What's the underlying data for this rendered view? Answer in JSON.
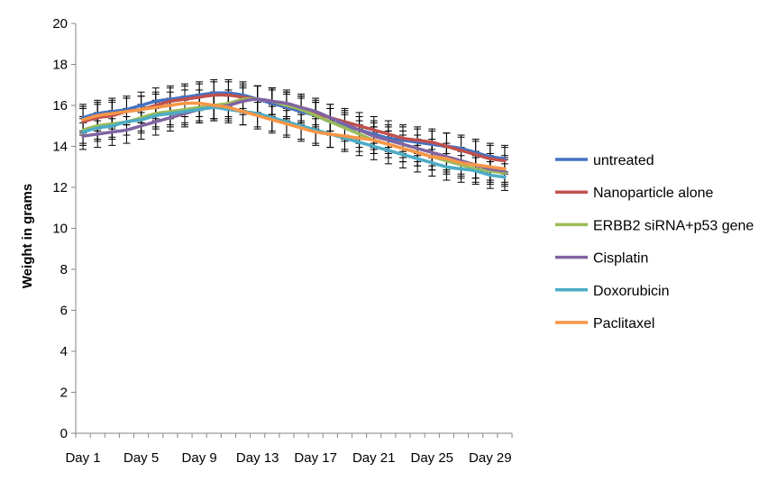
{
  "chart_data": {
    "type": "line",
    "ylabel": "Weight in grams",
    "xlabel": "",
    "ylim": [
      0,
      20
    ],
    "yticks": [
      0,
      2,
      4,
      6,
      8,
      10,
      12,
      14,
      16,
      18,
      20
    ],
    "x": [
      "Day 1",
      "Day 2",
      "Day 3",
      "Day 4",
      "Day 5",
      "Day 6",
      "Day 7",
      "Day 8",
      "Day 9",
      "Day 10",
      "Day 11",
      "Day 12",
      "Day 13",
      "Day 14",
      "Day 15",
      "Day 16",
      "Day 17",
      "Day 18",
      "Day 19",
      "Day 20",
      "Day 21",
      "Day 22",
      "Day 23",
      "Day 24",
      "Day 25",
      "Day 26",
      "Day 27",
      "Day 28",
      "Day 29",
      "Day 30"
    ],
    "xtick_labels": [
      "Day 1",
      "Day 5",
      "Day 9",
      "Day 13",
      "Day 17",
      "Day 21",
      "Day 25",
      "Day 29"
    ],
    "xtick_index": [
      0,
      4,
      8,
      12,
      16,
      20,
      24,
      28
    ],
    "legend_position": "right",
    "error_bar": 0.65,
    "series": [
      {
        "name": "untreated",
        "color": "#4472C4",
        "values": [
          15.4,
          15.6,
          15.7,
          15.8,
          16.0,
          16.2,
          16.3,
          16.4,
          16.5,
          16.6,
          16.6,
          16.5,
          16.3,
          16.1,
          15.9,
          15.7,
          15.5,
          15.2,
          15.0,
          14.8,
          14.6,
          14.4,
          14.3,
          14.2,
          14.1,
          14.0,
          13.9,
          13.7,
          13.5,
          13.4
        ]
      },
      {
        "name": "Nanoparticle alone",
        "color": "#C0504D",
        "values": [
          15.2,
          15.4,
          15.5,
          15.7,
          15.8,
          16.0,
          16.2,
          16.3,
          16.4,
          16.5,
          16.5,
          16.4,
          16.3,
          16.2,
          16.0,
          15.8,
          15.6,
          15.4,
          15.2,
          15.0,
          14.8,
          14.6,
          14.4,
          14.3,
          14.2,
          14.0,
          13.8,
          13.6,
          13.4,
          13.3
        ]
      },
      {
        "name": "ERBB2 siRNA+p53 gene",
        "color": "#9BBB59",
        "values": [
          14.8,
          15.0,
          15.1,
          15.2,
          15.4,
          15.6,
          15.7,
          15.8,
          15.9,
          16.0,
          16.1,
          16.3,
          16.3,
          16.2,
          16.0,
          15.8,
          15.5,
          15.2,
          14.9,
          14.6,
          14.3,
          14.1,
          13.9,
          13.7,
          13.5,
          13.3,
          13.1,
          12.9,
          12.8,
          12.7
        ]
      },
      {
        "name": "Cisplatin",
        "color": "#8064A2",
        "values": [
          14.5,
          14.6,
          14.7,
          14.8,
          15.0,
          15.2,
          15.4,
          15.6,
          15.8,
          15.9,
          16.0,
          16.2,
          16.3,
          16.2,
          16.1,
          15.9,
          15.7,
          15.4,
          15.1,
          14.8,
          14.5,
          14.3,
          14.1,
          13.9,
          13.7,
          13.5,
          13.3,
          13.1,
          12.9,
          12.8
        ]
      },
      {
        "name": "Doxorubicin",
        "color": "#4BACC6",
        "values": [
          14.7,
          14.9,
          15.0,
          15.2,
          15.3,
          15.5,
          15.6,
          15.7,
          15.8,
          15.9,
          15.8,
          15.7,
          15.6,
          15.4,
          15.2,
          15.0,
          14.8,
          14.6,
          14.4,
          14.2,
          14.0,
          13.8,
          13.6,
          13.4,
          13.2,
          13.0,
          12.9,
          12.8,
          12.6,
          12.5
        ]
      },
      {
        "name": "Paclitaxel",
        "color": "#F79646",
        "values": [
          15.3,
          15.5,
          15.6,
          15.7,
          15.8,
          15.9,
          16.0,
          16.1,
          16.1,
          16.0,
          15.9,
          15.7,
          15.5,
          15.3,
          15.1,
          14.9,
          14.7,
          14.6,
          14.5,
          14.4,
          14.3,
          14.1,
          13.9,
          13.7,
          13.5,
          13.4,
          13.2,
          13.1,
          13.0,
          12.9
        ]
      }
    ]
  }
}
